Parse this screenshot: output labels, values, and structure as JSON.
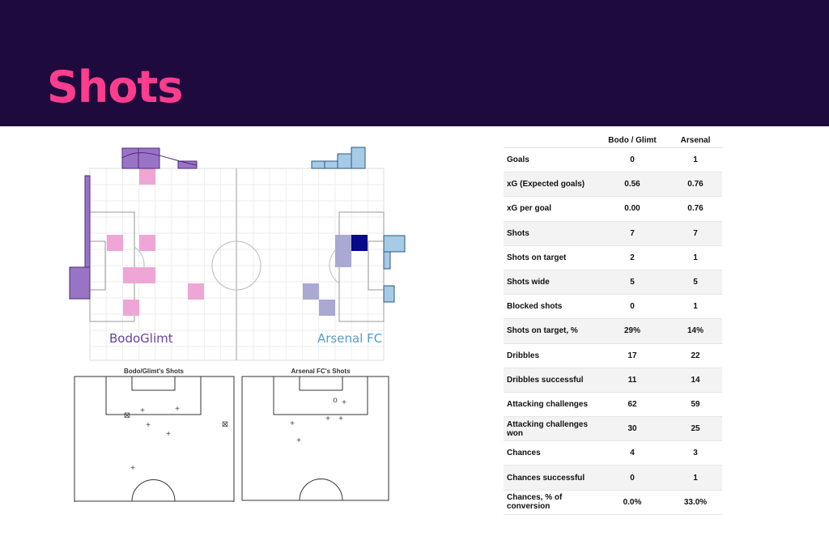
{
  "header": {
    "title": "Shots",
    "bg_color": "#1f0a3e",
    "title_color": "#ff3d8d"
  },
  "heatmap": {
    "team_left": "BodoGlimt",
    "team_right": "Arsenal FC",
    "left_color": "#6b3fa0",
    "right_color": "#5b9bc9"
  },
  "shot_maps": {
    "left_title": "Bodo/Glimt's Shots",
    "right_title": "Arsenal FC's Shots"
  },
  "table": {
    "columns": [
      "",
      "Bodo / Glimt",
      "Arsenal"
    ],
    "rows": [
      [
        "Goals",
        "0",
        "1"
      ],
      [
        "xG (Expected goals)",
        "0.56",
        "0.76"
      ],
      [
        "xG per goal",
        "0.00",
        "0.76"
      ],
      [
        "Shots",
        "7",
        "7"
      ],
      [
        "Shots on target",
        "2",
        "1"
      ],
      [
        "Shots wide",
        "5",
        "5"
      ],
      [
        "Blocked shots",
        "0",
        "1"
      ],
      [
        "Shots on target, %",
        "29%",
        "14%"
      ],
      [
        "Dribbles",
        "17",
        "22"
      ],
      [
        "Dribbles successful",
        "11",
        "14"
      ],
      [
        "Attacking challenges",
        "62",
        "59"
      ],
      [
        "Attacking challenges won",
        "30",
        "25"
      ],
      [
        "Chances",
        "4",
        "3"
      ],
      [
        "Chances successful",
        "0",
        "1"
      ],
      [
        "Chances, % of conversion",
        "0.0%",
        "33.0%"
      ]
    ]
  }
}
